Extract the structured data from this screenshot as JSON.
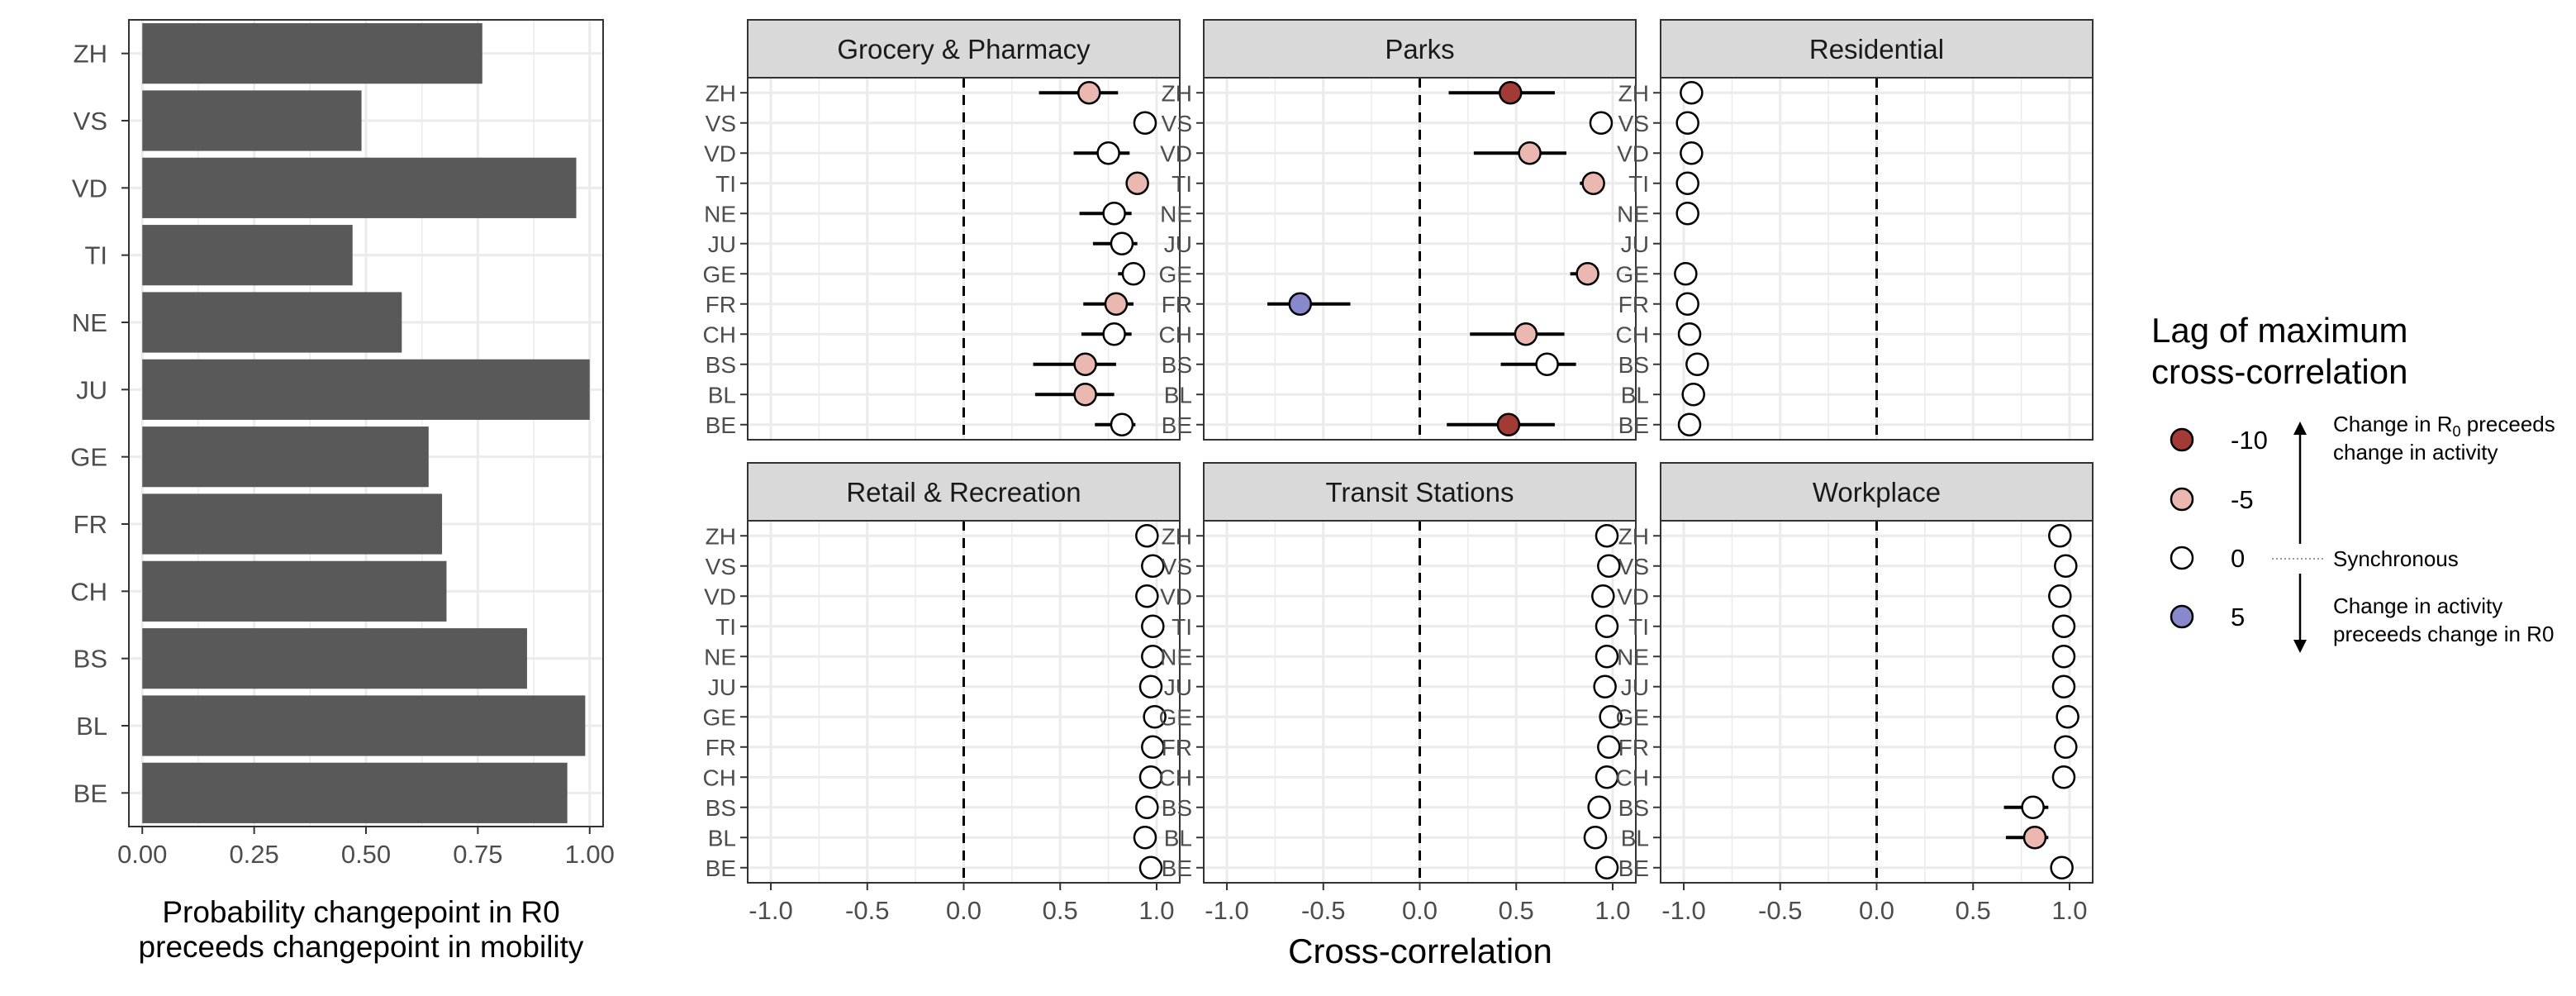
{
  "chart_data": [
    {
      "type": "bar",
      "orientation": "horizontal",
      "categories": [
        "ZH",
        "VS",
        "VD",
        "TI",
        "NE",
        "JU",
        "GE",
        "FR",
        "CH",
        "BS",
        "BL",
        "BE"
      ],
      "values": [
        0.76,
        0.49,
        0.97,
        0.47,
        0.58,
        1.0,
        0.64,
        0.67,
        0.68,
        0.86,
        0.99,
        0.95
      ],
      "bar_color": "#595959",
      "xlim": [
        -0.03,
        1.03
      ],
      "xticks": [
        "0.00",
        "0.25",
        "0.50",
        "0.75",
        "1.00"
      ],
      "xlabel": [
        "Probability changepoint in R0",
        "preceeds changepoint in mobility"
      ],
      "grid": true
    },
    {
      "type": "scatter",
      "style": "faceted dot-and-whisker",
      "rows": [
        "ZH",
        "VS",
        "VD",
        "TI",
        "NE",
        "JU",
        "GE",
        "FR",
        "CH",
        "BS",
        "BL",
        "BE"
      ],
      "xlim": [
        -1.12,
        1.12
      ],
      "xticks": [
        "-1.0",
        "-0.5",
        "0.0",
        "0.5",
        "1.0"
      ],
      "xlabel": "Cross-correlation",
      "reference_line_x": 0,
      "grid": true,
      "facets": [
        {
          "title": "Grocery & Pharmacy",
          "points": [
            {
              "region": "ZH",
              "x": 0.65,
              "lo": 0.39,
              "hi": 0.8,
              "lag": -5
            },
            {
              "region": "VS",
              "x": 0.94,
              "lo": 0.94,
              "hi": 0.94,
              "lag": 0
            },
            {
              "region": "VD",
              "x": 0.75,
              "lo": 0.57,
              "hi": 0.86,
              "lag": 0
            },
            {
              "region": "TI",
              "x": 0.9,
              "lo": 0.84,
              "hi": 0.93,
              "lag": -5
            },
            {
              "region": "NE",
              "x": 0.78,
              "lo": 0.6,
              "hi": 0.87,
              "lag": 0
            },
            {
              "region": "JU",
              "x": 0.82,
              "lo": 0.67,
              "hi": 0.9,
              "lag": 0
            },
            {
              "region": "GE",
              "x": 0.88,
              "lo": 0.8,
              "hi": 0.92,
              "lag": 0
            },
            {
              "region": "FR",
              "x": 0.79,
              "lo": 0.62,
              "hi": 0.88,
              "lag": -5
            },
            {
              "region": "CH",
              "x": 0.78,
              "lo": 0.61,
              "hi": 0.87,
              "lag": 0
            },
            {
              "region": "BS",
              "x": 0.63,
              "lo": 0.36,
              "hi": 0.79,
              "lag": -5
            },
            {
              "region": "BL",
              "x": 0.63,
              "lo": 0.37,
              "hi": 0.78,
              "lag": -5
            },
            {
              "region": "BE",
              "x": 0.82,
              "lo": 0.68,
              "hi": 0.89,
              "lag": 0
            }
          ]
        },
        {
          "title": "Parks",
          "points": [
            {
              "region": "ZH",
              "x": 0.47,
              "lo": 0.15,
              "hi": 0.7,
              "lag": -10
            },
            {
              "region": "VS",
              "x": 0.94,
              "lo": 0.94,
              "hi": 0.94,
              "lag": 0
            },
            {
              "region": "VD",
              "x": 0.57,
              "lo": 0.28,
              "hi": 0.76,
              "lag": -5
            },
            {
              "region": "TI",
              "x": 0.9,
              "lo": 0.83,
              "hi": 0.94,
              "lag": -5
            },
            {
              "region": "NE",
              "x": null,
              "lo": null,
              "hi": null,
              "lag": null
            },
            {
              "region": "JU",
              "x": null,
              "lo": null,
              "hi": null,
              "lag": null
            },
            {
              "region": "GE",
              "x": 0.87,
              "lo": 0.78,
              "hi": 0.92,
              "lag": -5
            },
            {
              "region": "FR",
              "x": -0.62,
              "lo": -0.79,
              "hi": -0.36,
              "lag": 5
            },
            {
              "region": "CH",
              "x": 0.55,
              "lo": 0.26,
              "hi": 0.75,
              "lag": -5
            },
            {
              "region": "BS",
              "x": 0.66,
              "lo": 0.42,
              "hi": 0.81,
              "lag": 0
            },
            {
              "region": "BL",
              "x": null,
              "lo": null,
              "hi": null,
              "lag": null
            },
            {
              "region": "BE",
              "x": 0.46,
              "lo": 0.14,
              "hi": 0.7,
              "lag": -10
            }
          ]
        },
        {
          "title": "Residential",
          "points": [
            {
              "region": "ZH",
              "x": -0.96,
              "lo": -0.96,
              "hi": -0.96,
              "lag": 0
            },
            {
              "region": "VS",
              "x": -0.98,
              "lo": -0.98,
              "hi": -0.98,
              "lag": 0
            },
            {
              "region": "VD",
              "x": -0.96,
              "lo": -0.96,
              "hi": -0.96,
              "lag": 0
            },
            {
              "region": "TI",
              "x": -0.98,
              "lo": -0.98,
              "hi": -0.98,
              "lag": 0
            },
            {
              "region": "NE",
              "x": -0.98,
              "lo": -0.98,
              "hi": -0.98,
              "lag": 0
            },
            {
              "region": "JU",
              "x": null,
              "lo": null,
              "hi": null,
              "lag": null
            },
            {
              "region": "GE",
              "x": -0.99,
              "lo": -0.99,
              "hi": -0.99,
              "lag": 0
            },
            {
              "region": "FR",
              "x": -0.98,
              "lo": -0.98,
              "hi": -0.98,
              "lag": 0
            },
            {
              "region": "CH",
              "x": -0.97,
              "lo": -0.97,
              "hi": -0.97,
              "lag": 0
            },
            {
              "region": "BS",
              "x": -0.93,
              "lo": -0.97,
              "hi": -0.87,
              "lag": 0
            },
            {
              "region": "BL",
              "x": -0.95,
              "lo": -0.95,
              "hi": -0.95,
              "lag": 0
            },
            {
              "region": "BE",
              "x": -0.97,
              "lo": -0.97,
              "hi": -0.97,
              "lag": 0
            }
          ]
        },
        {
          "title": "Retail & Recreation",
          "points": [
            {
              "region": "ZH",
              "x": 0.95,
              "lo": 0.95,
              "hi": 0.95,
              "lag": 0
            },
            {
              "region": "VS",
              "x": 0.98,
              "lo": 0.98,
              "hi": 0.98,
              "lag": 0
            },
            {
              "region": "VD",
              "x": 0.95,
              "lo": 0.95,
              "hi": 0.95,
              "lag": 0
            },
            {
              "region": "TI",
              "x": 0.98,
              "lo": 0.98,
              "hi": 0.98,
              "lag": 0
            },
            {
              "region": "NE",
              "x": 0.98,
              "lo": 0.98,
              "hi": 0.98,
              "lag": 0
            },
            {
              "region": "JU",
              "x": 0.97,
              "lo": 0.97,
              "hi": 0.97,
              "lag": 0
            },
            {
              "region": "GE",
              "x": 0.99,
              "lo": 0.99,
              "hi": 0.99,
              "lag": 0
            },
            {
              "region": "FR",
              "x": 0.98,
              "lo": 0.98,
              "hi": 0.98,
              "lag": 0
            },
            {
              "region": "CH",
              "x": 0.97,
              "lo": 0.97,
              "hi": 0.97,
              "lag": 0
            },
            {
              "region": "BS",
              "x": 0.95,
              "lo": 0.95,
              "hi": 0.95,
              "lag": 0
            },
            {
              "region": "BL",
              "x": 0.94,
              "lo": 0.94,
              "hi": 0.94,
              "lag": 0
            },
            {
              "region": "BE",
              "x": 0.97,
              "lo": 0.97,
              "hi": 0.97,
              "lag": 0
            }
          ]
        },
        {
          "title": "Transit Stations",
          "points": [
            {
              "region": "ZH",
              "x": 0.97,
              "lo": 0.97,
              "hi": 0.97,
              "lag": 0
            },
            {
              "region": "VS",
              "x": 0.98,
              "lo": 0.98,
              "hi": 0.98,
              "lag": 0
            },
            {
              "region": "VD",
              "x": 0.95,
              "lo": 0.95,
              "hi": 0.95,
              "lag": 0
            },
            {
              "region": "TI",
              "x": 0.97,
              "lo": 0.97,
              "hi": 0.97,
              "lag": 0
            },
            {
              "region": "NE",
              "x": 0.97,
              "lo": 0.97,
              "hi": 0.97,
              "lag": 0
            },
            {
              "region": "JU",
              "x": 0.96,
              "lo": 0.96,
              "hi": 0.96,
              "lag": 0
            },
            {
              "region": "GE",
              "x": 0.99,
              "lo": 0.99,
              "hi": 0.99,
              "lag": 0
            },
            {
              "region": "FR",
              "x": 0.98,
              "lo": 0.98,
              "hi": 0.98,
              "lag": 0
            },
            {
              "region": "CH",
              "x": 0.97,
              "lo": 0.97,
              "hi": 0.97,
              "lag": 0
            },
            {
              "region": "BS",
              "x": 0.93,
              "lo": 0.93,
              "hi": 0.93,
              "lag": 0
            },
            {
              "region": "BL",
              "x": 0.91,
              "lo": 0.86,
              "hi": 0.94,
              "lag": 0
            },
            {
              "region": "BE",
              "x": 0.97,
              "lo": 0.97,
              "hi": 0.97,
              "lag": 0
            }
          ]
        },
        {
          "title": "Workplace",
          "points": [
            {
              "region": "ZH",
              "x": 0.95,
              "lo": 0.95,
              "hi": 0.95,
              "lag": 0
            },
            {
              "region": "VS",
              "x": 0.98,
              "lo": 0.98,
              "hi": 0.98,
              "lag": 0
            },
            {
              "region": "VD",
              "x": 0.95,
              "lo": 0.95,
              "hi": 0.95,
              "lag": 0
            },
            {
              "region": "TI",
              "x": 0.97,
              "lo": 0.97,
              "hi": 0.97,
              "lag": 0
            },
            {
              "region": "NE",
              "x": 0.97,
              "lo": 0.97,
              "hi": 0.97,
              "lag": 0
            },
            {
              "region": "JU",
              "x": 0.97,
              "lo": 0.97,
              "hi": 0.97,
              "lag": 0
            },
            {
              "region": "GE",
              "x": 0.99,
              "lo": 0.99,
              "hi": 0.99,
              "lag": 0
            },
            {
              "region": "FR",
              "x": 0.98,
              "lo": 0.98,
              "hi": 0.98,
              "lag": 0
            },
            {
              "region": "CH",
              "x": 0.97,
              "lo": 0.97,
              "hi": 0.97,
              "lag": 0
            },
            {
              "region": "BS",
              "x": 0.81,
              "lo": 0.66,
              "hi": 0.89,
              "lag": 0
            },
            {
              "region": "BL",
              "x": 0.82,
              "lo": 0.67,
              "hi": 0.89,
              "lag": -5
            },
            {
              "region": "BE",
              "x": 0.96,
              "lo": 0.96,
              "hi": 0.96,
              "lag": 0
            }
          ]
        }
      ]
    }
  ],
  "legend": {
    "title": [
      "Lag of maximum",
      "cross-correlation"
    ],
    "placement": "right",
    "entries": [
      {
        "label": "-10",
        "color": "#a23b35"
      },
      {
        "label": "-5",
        "color": "#ebb8b1"
      },
      {
        "label": "0",
        "color": "#ffffff"
      },
      {
        "label": "5",
        "color": "#8888cc"
      }
    ],
    "annotation_up": [
      "Change in R",
      "0",
      " preceeds",
      "change in activity"
    ],
    "annotation_mid": "Synchronous",
    "annotation_down": [
      "Change in activity",
      "preceeds change in R0"
    ]
  },
  "colors": {
    "strip_fill": "#d9d9d9",
    "grid": "#ebebeb",
    "panel_border": "#333333",
    "axis_text": "#4d4d4d"
  }
}
